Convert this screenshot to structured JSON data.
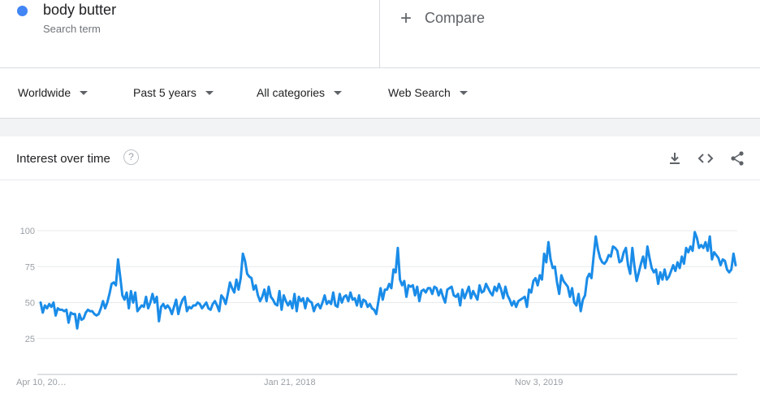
{
  "search_term": {
    "name": "body butter",
    "subtitle": "Search term",
    "color": "#4285f4"
  },
  "compare": {
    "plus": "+",
    "label": "Compare"
  },
  "filters": {
    "region": "Worldwide",
    "time": "Past 5 years",
    "category": "All categories",
    "search_type": "Web Search"
  },
  "card": {
    "title": "Interest over time",
    "help": "?",
    "icons": [
      "download-icon",
      "embed-code-icon",
      "share-icon"
    ]
  },
  "chart_data": {
    "type": "line",
    "title": "",
    "xlabel": "",
    "ylabel": "",
    "ylim": [
      0,
      100
    ],
    "yticks": [
      25,
      50,
      75,
      100
    ],
    "x_tick_labels": [
      "Apr 10, 20…",
      "Jan 21, 2018",
      "Nov 3, 2019"
    ],
    "series": [
      {
        "color": "#1a8ce8",
        "values": [
          50,
          43,
          48,
          46,
          49,
          47,
          50,
          41,
          46,
          45,
          45,
          44,
          45,
          36,
          43,
          42,
          42,
          32,
          42,
          38,
          39,
          43,
          45,
          44,
          44,
          42,
          41,
          42,
          46,
          51,
          46,
          50,
          56,
          63,
          64,
          62,
          80,
          68,
          55,
          52,
          57,
          46,
          58,
          50,
          57,
          44,
          46,
          48,
          47,
          54,
          46,
          50,
          56,
          50,
          54,
          37,
          47,
          49,
          46,
          48,
          46,
          42,
          47,
          52,
          42,
          48,
          52,
          54,
          44,
          47,
          46,
          48,
          48,
          50,
          49,
          46,
          48,
          50,
          46,
          45,
          49,
          51,
          48,
          44,
          55,
          53,
          49,
          56,
          64,
          60,
          57,
          66,
          59,
          67,
          84,
          79,
          70,
          68,
          67,
          59,
          62,
          55,
          51,
          54,
          59,
          51,
          61,
          54,
          52,
          49,
          48,
          58,
          45,
          55,
          51,
          48,
          51,
          46,
          56,
          44,
          54,
          51,
          53,
          46,
          53,
          51,
          50,
          44,
          48,
          49,
          46,
          50,
          55,
          49,
          51,
          49,
          57,
          48,
          47,
          56,
          50,
          54,
          55,
          51,
          57,
          52,
          53,
          48,
          55,
          47,
          52,
          51,
          47,
          49,
          46,
          45,
          42,
          51,
          60,
          52,
          59,
          59,
          63,
          60,
          73,
          71,
          88,
          66,
          62,
          65,
          54,
          62,
          61,
          62,
          55,
          61,
          51,
          58,
          59,
          57,
          60,
          60,
          56,
          61,
          60,
          55,
          59,
          54,
          50,
          59,
          60,
          61,
          55,
          54,
          56,
          48,
          59,
          53,
          57,
          61,
          53,
          58,
          55,
          52,
          62,
          57,
          58,
          63,
          60,
          57,
          55,
          61,
          58,
          63,
          59,
          53,
          61,
          55,
          52,
          48,
          51,
          47,
          51,
          52,
          53,
          54,
          47,
          59,
          57,
          65,
          67,
          62,
          69,
          66,
          84,
          78,
          92,
          80,
          74,
          75,
          64,
          56,
          69,
          65,
          63,
          61,
          54,
          60,
          50,
          48,
          56,
          44,
          52,
          55,
          67,
          70,
          67,
          82,
          96,
          87,
          81,
          78,
          77,
          79,
          83,
          82,
          89,
          88,
          86,
          78,
          79,
          85,
          88,
          76,
          70,
          88,
          75,
          65,
          71,
          77,
          82,
          74,
          89,
          81,
          74,
          71,
          73,
          63,
          71,
          66,
          73,
          66,
          68,
          72,
          76,
          72,
          78,
          74,
          82,
          77,
          88,
          85,
          89,
          86,
          99,
          95,
          88,
          90,
          88,
          92,
          86,
          96,
          80,
          85,
          83,
          81,
          76,
          80,
          79,
          73,
          71,
          73,
          84,
          76
        ]
      }
    ]
  }
}
